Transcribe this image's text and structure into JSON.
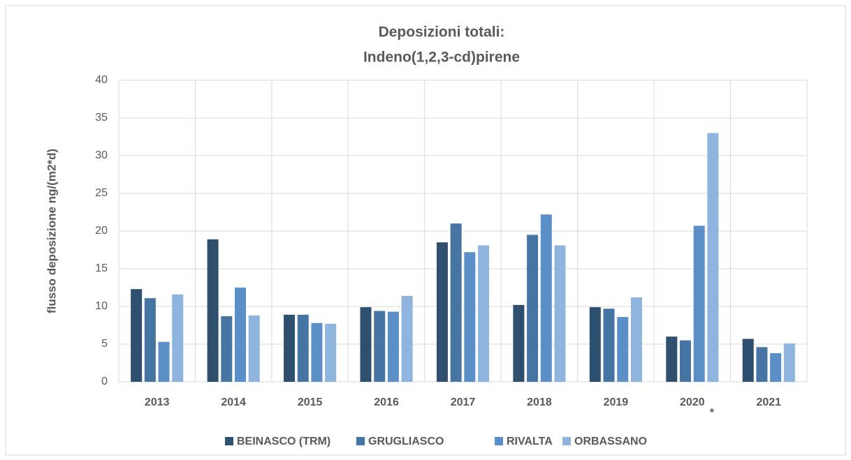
{
  "chart_data": {
    "type": "bar",
    "title": [
      "Deposizioni totali:",
      "Indeno(1,2,3-cd)pirene"
    ],
    "y_label": "flusso deposizione ng/(m2*d)",
    "categories": [
      "2013",
      "2014",
      "2015",
      "2016",
      "2017",
      "2018",
      "2019",
      "2020",
      "2021"
    ],
    "annotations": [
      "*"
    ],
    "series": [
      {
        "name": "BEINASCO (TRM)",
        "color": "#2f4f6f",
        "values": [
          12.3,
          18.9,
          8.9,
          9.9,
          18.5,
          10.2,
          9.9,
          6.0,
          5.7
        ]
      },
      {
        "name": "GRUGLIASCO",
        "color": "#4674a3",
        "values": [
          11.1,
          8.7,
          8.9,
          9.4,
          21.0,
          19.5,
          9.7,
          5.5,
          4.6
        ]
      },
      {
        "name": "RIVALTA",
        "color": "#5b8fc8",
        "values": [
          5.3,
          12.5,
          7.8,
          9.3,
          17.2,
          22.2,
          8.6,
          20.7,
          3.8
        ]
      },
      {
        "name": "ORBASSANO",
        "color": "#8fb4de",
        "values": [
          11.6,
          8.8,
          7.7,
          11.4,
          18.1,
          18.1,
          11.2,
          33.0,
          5.1
        ]
      }
    ],
    "ylim": [
      0,
      40
    ],
    "yticks": [
      0,
      5,
      10,
      15,
      20,
      25,
      30,
      35,
      40
    ],
    "grid": true,
    "legend": "bottom"
  }
}
